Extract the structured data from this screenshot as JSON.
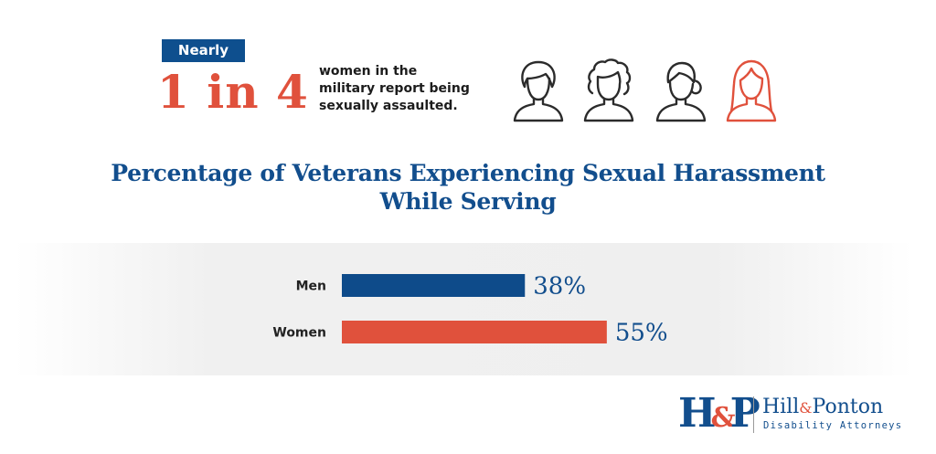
{
  "header": {
    "badge": "Nearly",
    "stat": "1 in 4",
    "caption_lines": [
      "women in the",
      "military report being",
      "sexually assaulted."
    ],
    "icons": [
      "woman-icon",
      "woman-icon",
      "woman-icon",
      "woman-highlight-icon"
    ]
  },
  "chart_data": {
    "type": "bar",
    "orientation": "horizontal",
    "title": "Percentage of Veterans Experiencing Sexual Harassment While Serving",
    "title_lines": [
      "Percentage of Veterans Experiencing Sexual Harassment",
      "While Serving"
    ],
    "categories": [
      "Men",
      "Women"
    ],
    "values": [
      38,
      55
    ],
    "value_labels": [
      "38%",
      "55%"
    ],
    "colors": [
      "#0e4b8a",
      "#e0513c"
    ],
    "xlim": [
      0,
      100
    ],
    "grid": false,
    "legend": "none"
  },
  "logo": {
    "mark_left": "H",
    "mark_amp": "&",
    "mark_right": "P",
    "name_left": "Hill",
    "name_amp": "&",
    "name_right": "Ponton",
    "tagline": "Disability Attorneys"
  },
  "colors": {
    "navy": "#124e8d",
    "accent": "#e0513c",
    "icon_outline": "#2b2b2b"
  }
}
